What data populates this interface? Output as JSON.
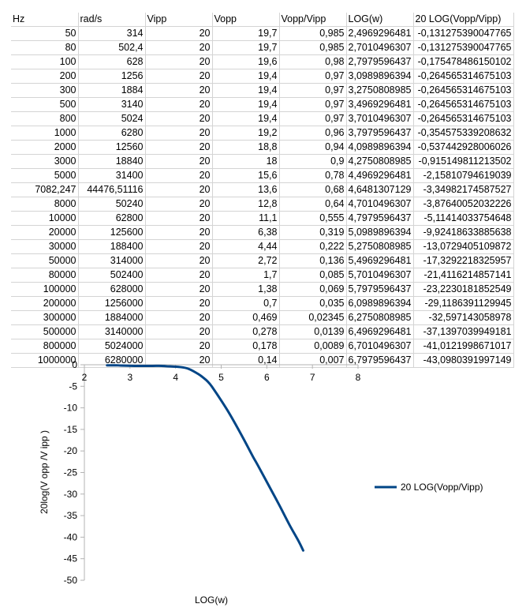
{
  "table": {
    "headers": [
      "Hz",
      "rad/s",
      "Vipp",
      "Vopp",
      "Vopp/Vipp",
      "LOG(w)",
      "20 LOG(Vopp/Vipp)"
    ],
    "rows": [
      [
        "50",
        "314",
        "20",
        "19,7",
        "0,985",
        "2,4969296481",
        "-0,131275390047765"
      ],
      [
        "80",
        "502,4",
        "20",
        "19,7",
        "0,985",
        "2,7010496307",
        "-0,131275390047765"
      ],
      [
        "100",
        "628",
        "20",
        "19,6",
        "0,98",
        "2,7979596437",
        "-0,175478486150102"
      ],
      [
        "200",
        "1256",
        "20",
        "19,4",
        "0,97",
        "3,0989896394",
        "-0,264565314675103"
      ],
      [
        "300",
        "1884",
        "20",
        "19,4",
        "0,97",
        "3,2750808985",
        "-0,264565314675103"
      ],
      [
        "500",
        "3140",
        "20",
        "19,4",
        "0,97",
        "3,4969296481",
        "-0,264565314675103"
      ],
      [
        "800",
        "5024",
        "20",
        "19,4",
        "0,97",
        "3,7010496307",
        "-0,264565314675103"
      ],
      [
        "1000",
        "6280",
        "20",
        "19,2",
        "0,96",
        "3,7979596437",
        "-0,354575339208632"
      ],
      [
        "2000",
        "12560",
        "20",
        "18,8",
        "0,94",
        "4,0989896394",
        "-0,537442928006026"
      ],
      [
        "3000",
        "18840",
        "20",
        "18",
        "0,9",
        "4,2750808985",
        "-0,915149811213502"
      ],
      [
        "5000",
        "31400",
        "20",
        "15,6",
        "0,78",
        "4,4969296481",
        "-2,15810794619039"
      ],
      [
        "7082,247",
        "44476,51116",
        "20",
        "13,6",
        "0,68",
        "4,6481307129",
        "-3,34982174587527"
      ],
      [
        "8000",
        "50240",
        "20",
        "12,8",
        "0,64",
        "4,7010496307",
        "-3,87640052032226"
      ],
      [
        "10000",
        "62800",
        "20",
        "11,1",
        "0,555",
        "4,7979596437",
        "-5,11414033754648"
      ],
      [
        "20000",
        "125600",
        "20",
        "6,38",
        "0,319",
        "5,0989896394",
        "-9,92418633885638"
      ],
      [
        "30000",
        "188400",
        "20",
        "4,44",
        "0,222",
        "5,2750808985",
        "-13,0729405109872"
      ],
      [
        "50000",
        "314000",
        "20",
        "2,72",
        "0,136",
        "5,4969296481",
        "-17,3292218325957"
      ],
      [
        "80000",
        "502400",
        "20",
        "1,7",
        "0,085",
        "5,7010496307",
        "-21,4116214857141"
      ],
      [
        "100000",
        "628000",
        "20",
        "1,38",
        "0,069",
        "5,7979596437",
        "-23,2230181852549"
      ],
      [
        "200000",
        "1256000",
        "20",
        "0,7",
        "0,035",
        "6,0989896394",
        "-29,1186391129945"
      ],
      [
        "300000",
        "1884000",
        "20",
        "0,469",
        "0,02345",
        "6,2750808985",
        "-32,597143058978"
      ],
      [
        "500000",
        "3140000",
        "20",
        "0,278",
        "0,0139",
        "6,4969296481",
        "-37,1397039949181"
      ],
      [
        "800000",
        "5024000",
        "20",
        "0,178",
        "0,0089",
        "6,7010496307",
        "-41,0121998671017"
      ],
      [
        "1000000",
        "6280000",
        "20",
        "0,14",
        "0,007",
        "6,7979596437",
        "-43,0980391997149"
      ]
    ]
  },
  "chart_data": {
    "type": "line",
    "title": "",
    "xlabel": "LOG(w)",
    "ylabel": "20log(V opp /V ipp )",
    "xlim": [
      2,
      8
    ],
    "ylim": [
      -50,
      0
    ],
    "xticks": [
      "2",
      "3",
      "4",
      "5",
      "6",
      "7",
      "8"
    ],
    "yticks": [
      "0",
      "-5",
      "-10",
      "-15",
      "-20",
      "-25",
      "-30",
      "-35",
      "-40",
      "-45",
      "-50"
    ],
    "grid": false,
    "legend_position": "right",
    "series": [
      {
        "name": "20 LOG(Vopp/Vipp)",
        "color": "#004586",
        "x": [
          2.4969296481,
          2.7010496307,
          2.7979596437,
          3.0989896394,
          3.2750808985,
          3.4969296481,
          3.7010496307,
          3.7979596437,
          4.0989896394,
          4.2750808985,
          4.4969296481,
          4.6481307129,
          4.7010496307,
          4.7979596437,
          5.0989896394,
          5.2750808985,
          5.4969296481,
          5.7010496307,
          5.7979596437,
          6.0989896394,
          6.2750808985,
          6.4969296481,
          6.7010496307,
          6.7979596437
        ],
        "y": [
          -0.131275390047765,
          -0.131275390047765,
          -0.175478486150102,
          -0.264565314675103,
          -0.264565314675103,
          -0.264565314675103,
          -0.264565314675103,
          -0.354575339208632,
          -0.537442928006026,
          -0.915149811213502,
          -2.15810794619039,
          -3.34982174587527,
          -3.87640052032226,
          -5.11414033754648,
          -9.92418633885638,
          -13.0729405109872,
          -17.3292218325957,
          -21.4116214857141,
          -23.2230181852549,
          -29.1186391129945,
          -32.597143058978,
          -37.1397039949181,
          -41.0121998671017,
          -43.0980391997149
        ]
      }
    ]
  }
}
